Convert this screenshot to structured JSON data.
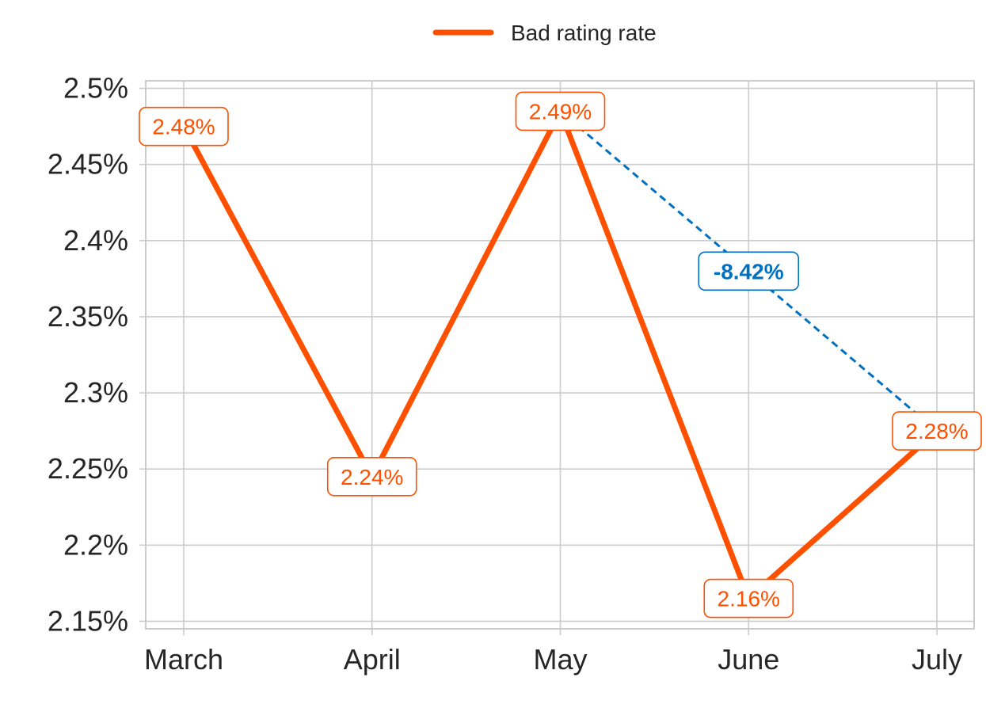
{
  "chart_data": {
    "type": "line",
    "categories": [
      "March",
      "April",
      "May",
      "June",
      "July"
    ],
    "series": [
      {
        "name": "Bad rating rate",
        "values": [
          2.475,
          2.245,
          2.485,
          2.165,
          2.275
        ],
        "labels": [
          "2.48%",
          "2.24%",
          "2.49%",
          "2.16%",
          "2.28%"
        ],
        "color": "#FF5000"
      }
    ],
    "y_ticks": [
      2.15,
      2.2,
      2.25,
      2.3,
      2.35,
      2.4,
      2.45,
      2.5
    ],
    "y_tick_labels": [
      "2.15%",
      "2.2%",
      "2.25%",
      "2.3%",
      "2.35%",
      "2.4%",
      "2.45%",
      "2.5%"
    ],
    "ylim": [
      2.145,
      2.505
    ],
    "grid": true,
    "legend_position": "top-center",
    "annotation": {
      "text": "-8.42%",
      "from_category": "May",
      "to_category": "July",
      "color": "#0070C0",
      "style": "dashed"
    }
  }
}
